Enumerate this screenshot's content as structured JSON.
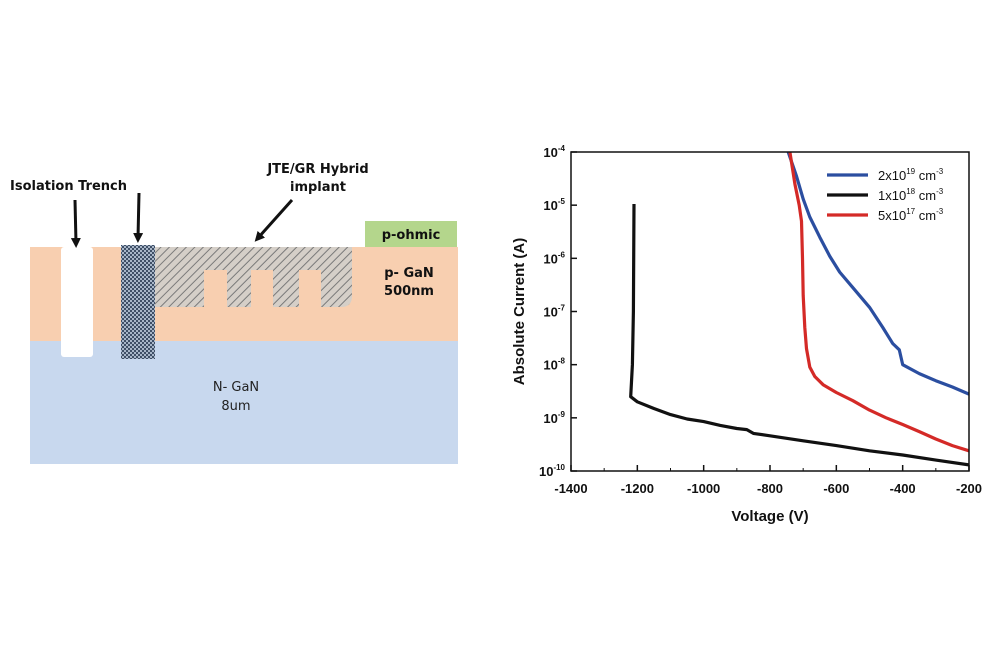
{
  "diagram": {
    "labels": {
      "isolation_trench": "Isolation Trench",
      "implant_line1": "JTE/GR Hybrid",
      "implant_line2": "implant",
      "p_ohmic": "p-ohmic",
      "p_gan_line1": "p- GaN",
      "p_gan_line2": "500nm",
      "n_gan_line1": "N- GaN",
      "n_gan_line2": "8um"
    },
    "colors": {
      "p_gan": "#f8cfb0",
      "n_gan": "#c8d8ee",
      "p_ohmic": "#b4d68c",
      "implant_hatch": "#8a8a8a",
      "isolation_fill": "#7d8fa6"
    }
  },
  "chart_data": {
    "type": "line",
    "title": "",
    "xlabel": "Voltage (V)",
    "ylabel": "Absolute Current (A)",
    "xlim": [
      -1400,
      -200
    ],
    "ylim": [
      1e-10,
      0.0001
    ],
    "yscale": "log",
    "x_ticks": [
      "-1400",
      "-1200",
      "-1000",
      "-800",
      "-600",
      "-400",
      "-200"
    ],
    "x_tick_values": [
      -1400,
      -1200,
      -1000,
      -800,
      -600,
      -400,
      -200
    ],
    "y_ticks": [
      {
        "value": 1e-10,
        "mantissa": "10",
        "exp": "-10"
      },
      {
        "value": 1e-09,
        "mantissa": "10",
        "exp": "-9"
      },
      {
        "value": 1e-08,
        "mantissa": "10",
        "exp": "-8"
      },
      {
        "value": 1e-07,
        "mantissa": "10",
        "exp": "-7"
      },
      {
        "value": 1e-06,
        "mantissa": "10",
        "exp": "-6"
      },
      {
        "value": 1e-05,
        "mantissa": "10",
        "exp": "-5"
      },
      {
        "value": 0.0001,
        "mantissa": "10",
        "exp": "-4"
      }
    ],
    "grid": false,
    "legend_position": "top-right",
    "series": [
      {
        "name": "2x10^19 cm^-3",
        "legend": {
          "base": "2x10",
          "exp": "19",
          "unit": " cm",
          "unit_exp": "-3"
        },
        "color": "#2b4ea0",
        "points": [
          [
            -745,
            0.0001
          ],
          [
            -720,
            3.5e-05
          ],
          [
            -700,
            1.3e-05
          ],
          [
            -680,
            6e-06
          ],
          [
            -650,
            2.5e-06
          ],
          [
            -620,
            1.1e-06
          ],
          [
            -590,
            5.5e-07
          ],
          [
            -550,
            2.8e-07
          ],
          [
            -500,
            1.2e-07
          ],
          [
            -460,
            5e-08
          ],
          [
            -430,
            2.5e-08
          ],
          [
            -410,
            1.9e-08
          ],
          [
            -400,
            1e-08
          ],
          [
            -350,
            6.8e-09
          ],
          [
            -300,
            5e-09
          ],
          [
            -250,
            3.8e-09
          ],
          [
            -200,
            2.8e-09
          ]
        ]
      },
      {
        "name": "1x10^18 cm^-3",
        "legend": {
          "base": "1x10",
          "exp": "18",
          "unit": " cm",
          "unit_exp": "-3"
        },
        "color": "#111111",
        "points": [
          [
            -1210,
            1.05e-05
          ],
          [
            -1212,
            1e-07
          ],
          [
            -1215,
            1e-08
          ],
          [
            -1220,
            2.5e-09
          ],
          [
            -1200,
            2e-09
          ],
          [
            -1150,
            1.5e-09
          ],
          [
            -1100,
            1.15e-09
          ],
          [
            -1050,
            9.5e-10
          ],
          [
            -1000,
            8.5e-10
          ],
          [
            -950,
            7.2e-10
          ],
          [
            -900,
            6.3e-10
          ],
          [
            -870,
            6e-10
          ],
          [
            -850,
            5.1e-10
          ],
          [
            -800,
            4.6e-10
          ],
          [
            -700,
            3.7e-10
          ],
          [
            -600,
            3e-10
          ],
          [
            -500,
            2.4e-10
          ],
          [
            -400,
            2e-10
          ],
          [
            -300,
            1.6e-10
          ],
          [
            -200,
            1.3e-10
          ]
        ]
      },
      {
        "name": "5x10^17 cm^-3",
        "legend": {
          "base": "5x10",
          "exp": "17",
          "unit": " cm",
          "unit_exp": "-3"
        },
        "color": "#d42a27",
        "points": [
          [
            -740,
            0.0001
          ],
          [
            -725,
            2.5e-05
          ],
          [
            -712,
            1e-05
          ],
          [
            -705,
            5e-06
          ],
          [
            -702,
            1e-06
          ],
          [
            -700,
            2e-07
          ],
          [
            -695,
            5e-08
          ],
          [
            -690,
            2e-08
          ],
          [
            -680,
            9e-09
          ],
          [
            -665,
            6e-09
          ],
          [
            -640,
            4.2e-09
          ],
          [
            -600,
            3e-09
          ],
          [
            -550,
            2.1e-09
          ],
          [
            -500,
            1.4e-09
          ],
          [
            -450,
            1e-09
          ],
          [
            -400,
            7.5e-10
          ],
          [
            -350,
            5.5e-10
          ],
          [
            -300,
            4e-10
          ],
          [
            -250,
            3e-10
          ],
          [
            -200,
            2.4e-10
          ]
        ]
      }
    ]
  }
}
